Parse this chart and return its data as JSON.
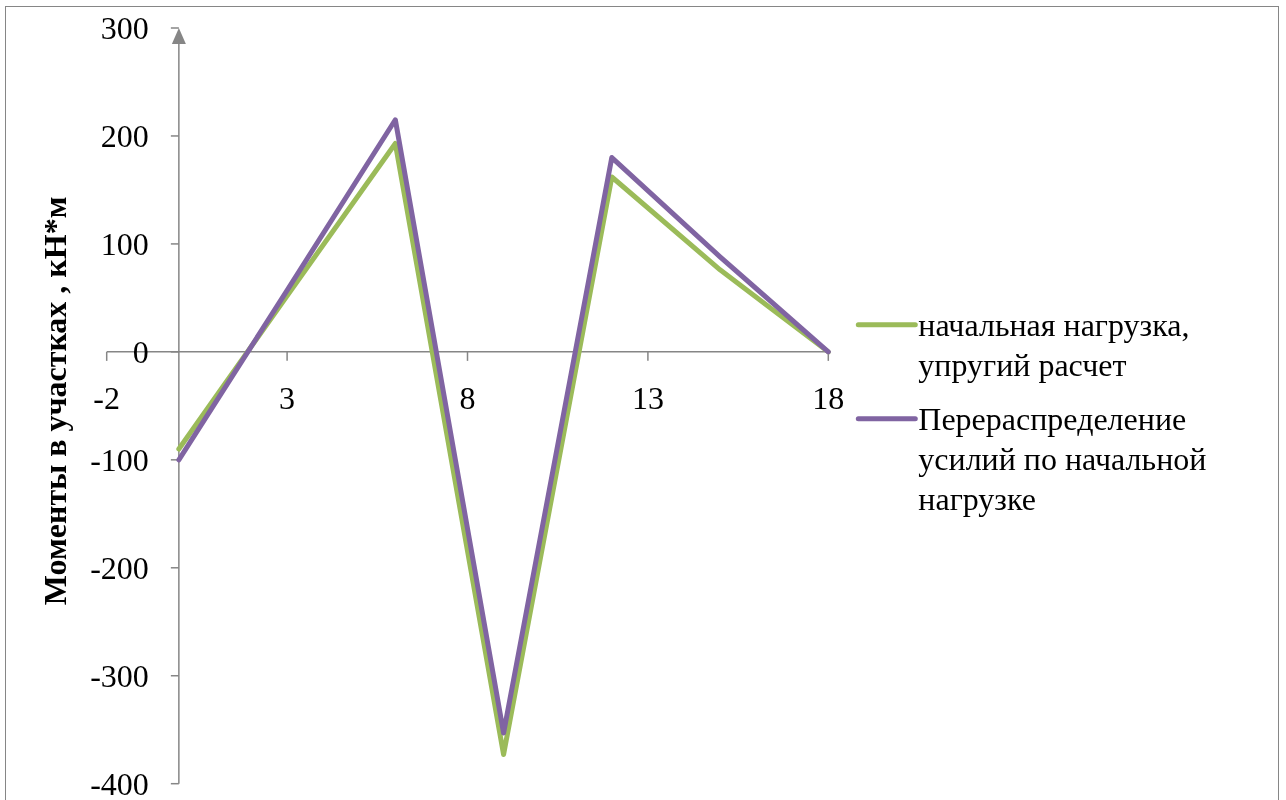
{
  "chart_data": {
    "type": "line",
    "ylabel": "Моменты в участках , кН*м",
    "x": [
      0,
      3,
      6,
      9,
      12,
      15,
      18
    ],
    "xlim": [
      -2,
      18
    ],
    "xticks": [
      -2,
      3,
      8,
      13,
      18
    ],
    "ylim": [
      -400,
      300
    ],
    "yticks": [
      -400,
      -300,
      -200,
      -100,
      0,
      100,
      200,
      300
    ],
    "series": [
      {
        "name": "начальная нагрузка, упругий расчет",
        "color": "#9bbb59",
        "values": [
          -90,
          52,
          193,
          -373,
          162,
          76,
          0
        ]
      },
      {
        "name": "Перераспределение усилий по начальной нагрузке",
        "color": "#8064a2",
        "values": [
          -100,
          57,
          215,
          -353,
          180,
          88,
          0
        ]
      }
    ],
    "legend": "right",
    "line_style": "solid"
  }
}
